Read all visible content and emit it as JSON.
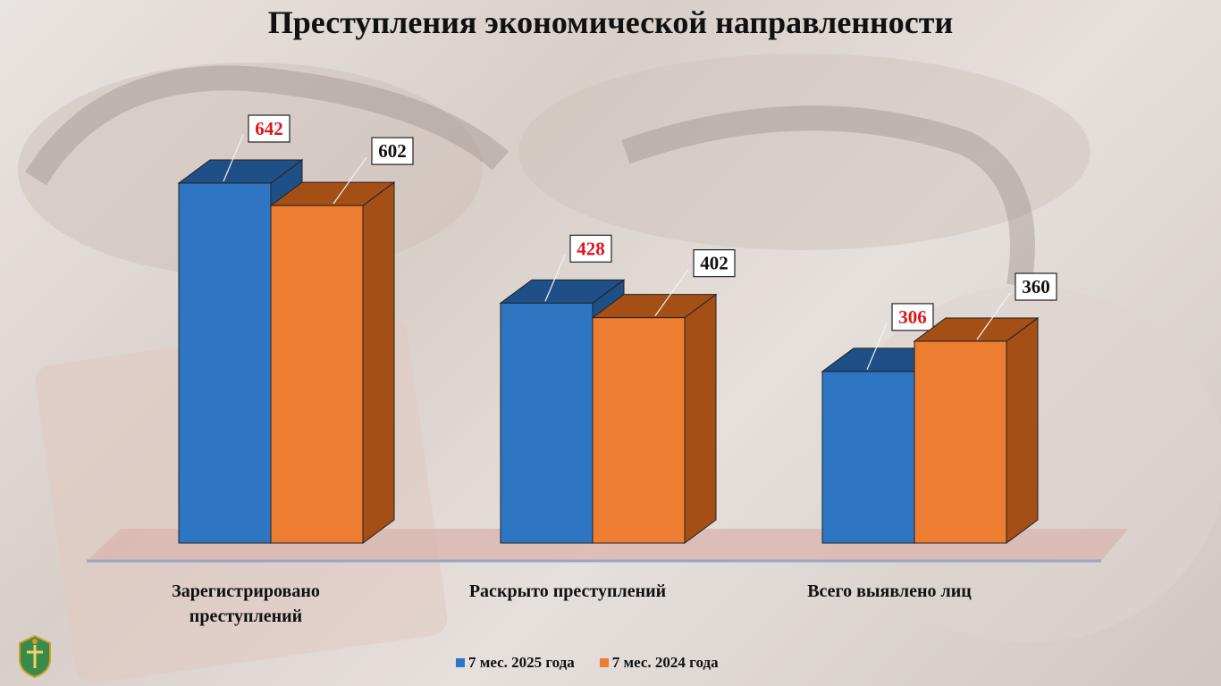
{
  "chart_data": {
    "type": "bar",
    "title": "Преступления экономической направленности",
    "categories": [
      "Зарегистрировано преступлений",
      "Раскрыто преступлений",
      "Всего выявлено лиц"
    ],
    "series": [
      {
        "name": "7 мес. 2025 года",
        "values": [
          642,
          428,
          306
        ],
        "color": "#2e75c2",
        "side_color": "#1f4f87",
        "label_color": "#e0161b"
      },
      {
        "name": "7 мес. 2024 года",
        "values": [
          602,
          402,
          360
        ],
        "color": "#ed7d31",
        "side_color": "#a34f16",
        "label_color": "#111111"
      }
    ],
    "ylim": [
      0,
      700
    ],
    "grid": false,
    "legend_position": "bottom",
    "style": "3d-bar"
  },
  "icons": {
    "emblem": "prosecutor-emblem-icon"
  }
}
